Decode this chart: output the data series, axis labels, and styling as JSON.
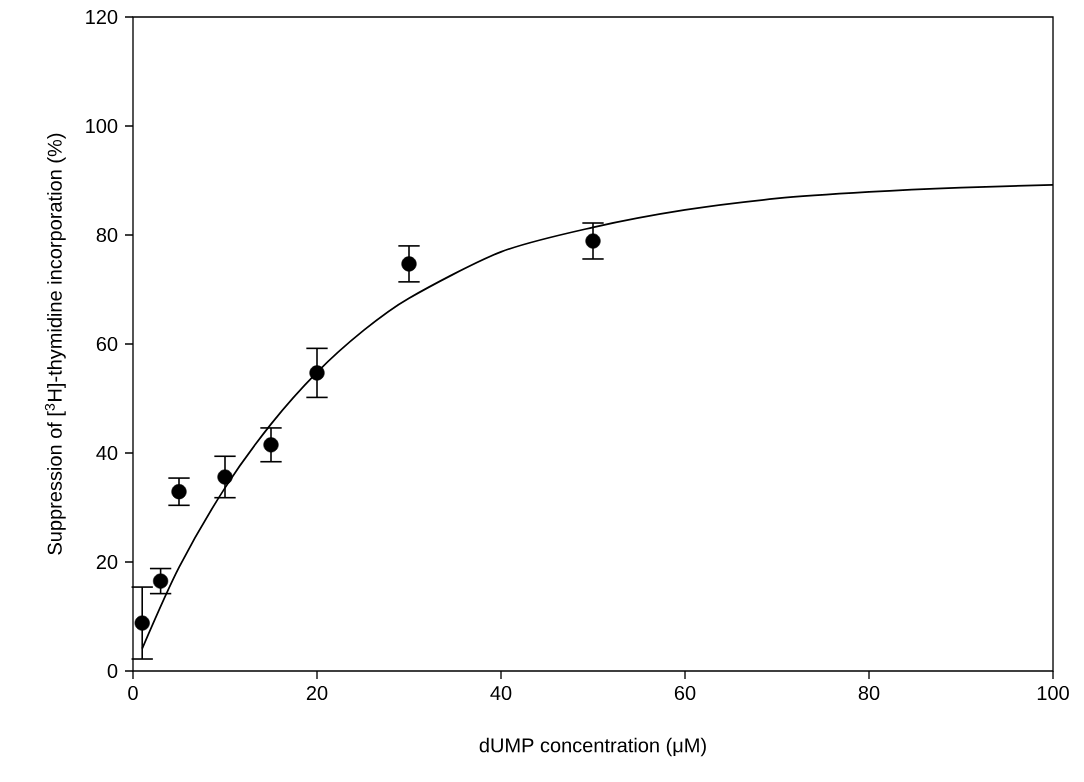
{
  "chart_data": {
    "type": "scatter",
    "xlabel": "dUMP concentration (μM)",
    "ylabel": "Suppression of [$^{3}$H]-thymidine incorporation (%)",
    "xlim": [
      0,
      100
    ],
    "xticks": [
      0,
      20,
      40,
      60,
      80,
      100
    ],
    "ylim": [
      0,
      120
    ],
    "yticks": [
      0,
      20,
      40,
      60,
      80,
      100,
      120
    ],
    "grid": false,
    "series": [
      {
        "color": "#000000",
        "marker": "circle",
        "x": [
          1,
          3,
          5,
          10,
          15,
          20,
          30,
          50
        ],
        "values": [
          8.8,
          16.5,
          32.9,
          35.6,
          41.5,
          54.7,
          74.7,
          78.9
        ],
        "errors": [
          6.6,
          2.3,
          2.5,
          3.8,
          3.1,
          4.5,
          3.3,
          3.3
        ]
      },
      {
        "type": "line",
        "color": "#000000",
        "marker": "none",
        "line_style": "solid",
        "x": [
          1,
          5,
          10,
          15,
          20,
          25,
          30,
          40,
          50,
          60,
          70,
          80,
          90,
          100
        ],
        "values": [
          4.1,
          19.0,
          33.6,
          45.3,
          54.8,
          62.4,
          68.4,
          76.9,
          81.4,
          84.6,
          86.7,
          87.9,
          88.7,
          89.2
        ]
      }
    ]
  }
}
